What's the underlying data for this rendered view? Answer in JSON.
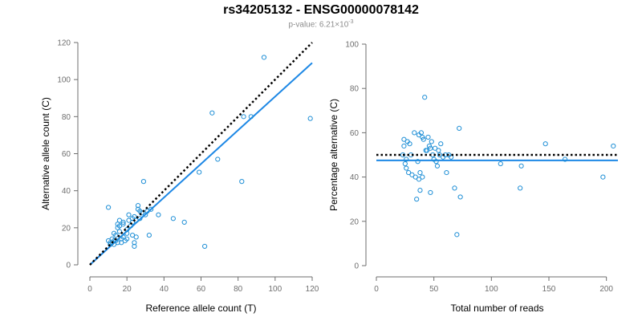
{
  "title": "rs34205132 - ENSG00000078142",
  "subtitle": {
    "prefix": "p-value: 6.21×10",
    "exponent": "-3"
  },
  "colors": {
    "points": "#1f8fd6",
    "fit": "#1e88e5",
    "reference": "#000000",
    "axis": "#6e6e6e"
  },
  "chart_data": [
    {
      "type": "scatter",
      "name": "left-panel",
      "xlabel": "Reference allele count (T)",
      "ylabel": "Alternative allele count (C)",
      "xlim": [
        0,
        120
      ],
      "ylim": [
        0,
        120
      ],
      "xticks": [
        0,
        20,
        40,
        60,
        80,
        100,
        120
      ],
      "yticks": [
        0,
        20,
        40,
        60,
        80,
        100,
        120
      ],
      "grid": false,
      "points": [
        [
          10,
          31
        ],
        [
          10,
          13
        ],
        [
          11,
          12
        ],
        [
          11,
          11
        ],
        [
          12,
          14
        ],
        [
          12,
          12
        ],
        [
          13,
          11
        ],
        [
          13,
          13
        ],
        [
          13,
          17
        ],
        [
          14,
          16
        ],
        [
          14,
          13
        ],
        [
          15,
          22
        ],
        [
          15,
          20
        ],
        [
          15,
          12
        ],
        [
          16,
          24
        ],
        [
          16,
          21
        ],
        [
          16,
          18
        ],
        [
          17,
          14
        ],
        [
          17,
          12
        ],
        [
          18,
          22
        ],
        [
          18,
          23
        ],
        [
          18,
          15
        ],
        [
          19,
          13
        ],
        [
          20,
          19
        ],
        [
          20,
          17
        ],
        [
          20,
          14
        ],
        [
          21,
          27
        ],
        [
          21,
          24
        ],
        [
          22,
          21
        ],
        [
          23,
          25
        ],
        [
          23,
          23
        ],
        [
          23,
          16
        ],
        [
          24,
          26
        ],
        [
          24,
          12
        ],
        [
          24,
          10
        ],
        [
          25,
          15
        ],
        [
          25,
          24
        ],
        [
          26,
          32
        ],
        [
          26,
          30
        ],
        [
          27,
          29
        ],
        [
          27,
          25
        ],
        [
          28,
          28
        ],
        [
          29,
          45
        ],
        [
          30,
          27
        ],
        [
          31,
          29
        ],
        [
          32,
          16
        ],
        [
          33,
          30
        ],
        [
          37,
          27
        ],
        [
          45,
          25
        ],
        [
          51,
          23
        ],
        [
          59,
          50
        ],
        [
          62,
          10
        ],
        [
          66,
          82
        ],
        [
          69,
          57
        ],
        [
          82,
          45
        ],
        [
          83,
          80
        ],
        [
          87,
          80
        ],
        [
          94,
          112
        ],
        [
          119,
          79
        ]
      ],
      "fit_line": {
        "x": [
          0,
          120
        ],
        "y": [
          0,
          109
        ]
      },
      "reference_line": {
        "x": [
          0,
          120
        ],
        "y": [
          0,
          120
        ]
      }
    },
    {
      "type": "scatter",
      "name": "right-panel",
      "xlabel": "Total number of reads",
      "ylabel": "Percentage alternative (C)",
      "xlim": [
        0,
        210
      ],
      "ylim": [
        0,
        100
      ],
      "xticks": [
        0,
        50,
        100,
        150,
        200
      ],
      "yticks": [
        0,
        20,
        40,
        60,
        80,
        100
      ],
      "grid": false,
      "points": [
        [
          23,
          50
        ],
        [
          24,
          57
        ],
        [
          24,
          54
        ],
        [
          25,
          46
        ],
        [
          26,
          44
        ],
        [
          26,
          48
        ],
        [
          27,
          56
        ],
        [
          28,
          42
        ],
        [
          29,
          55
        ],
        [
          30,
          50
        ],
        [
          31,
          41
        ],
        [
          33,
          60
        ],
        [
          34,
          40
        ],
        [
          35,
          30
        ],
        [
          36,
          47
        ],
        [
          37,
          59
        ],
        [
          37,
          39
        ],
        [
          38,
          34
        ],
        [
          38,
          42
        ],
        [
          39,
          60
        ],
        [
          40,
          58
        ],
        [
          40,
          40
        ],
        [
          41,
          57
        ],
        [
          42,
          76
        ],
        [
          43,
          52
        ],
        [
          44,
          52
        ],
        [
          45,
          58
        ],
        [
          46,
          54
        ],
        [
          47,
          33
        ],
        [
          47,
          53
        ],
        [
          48,
          56
        ],
        [
          49,
          50
        ],
        [
          50,
          48
        ],
        [
          51,
          53
        ],
        [
          52,
          47
        ],
        [
          53,
          45
        ],
        [
          54,
          52
        ],
        [
          55,
          50
        ],
        [
          56,
          55
        ],
        [
          58,
          49
        ],
        [
          60,
          50
        ],
        [
          61,
          42
        ],
        [
          63,
          50
        ],
        [
          65,
          49
        ],
        [
          68,
          35
        ],
        [
          70,
          14
        ],
        [
          72,
          62
        ],
        [
          73,
          31
        ],
        [
          108,
          46
        ],
        [
          125,
          35
        ],
        [
          126,
          45
        ],
        [
          147,
          55
        ],
        [
          164,
          48
        ],
        [
          197,
          40
        ],
        [
          206,
          54
        ]
      ],
      "fit_line": {
        "x": [
          0,
          210
        ],
        "y": [
          47.5,
          47.5
        ]
      },
      "reference_line": {
        "x": [
          0,
          210
        ],
        "y": [
          50,
          50
        ]
      }
    }
  ]
}
